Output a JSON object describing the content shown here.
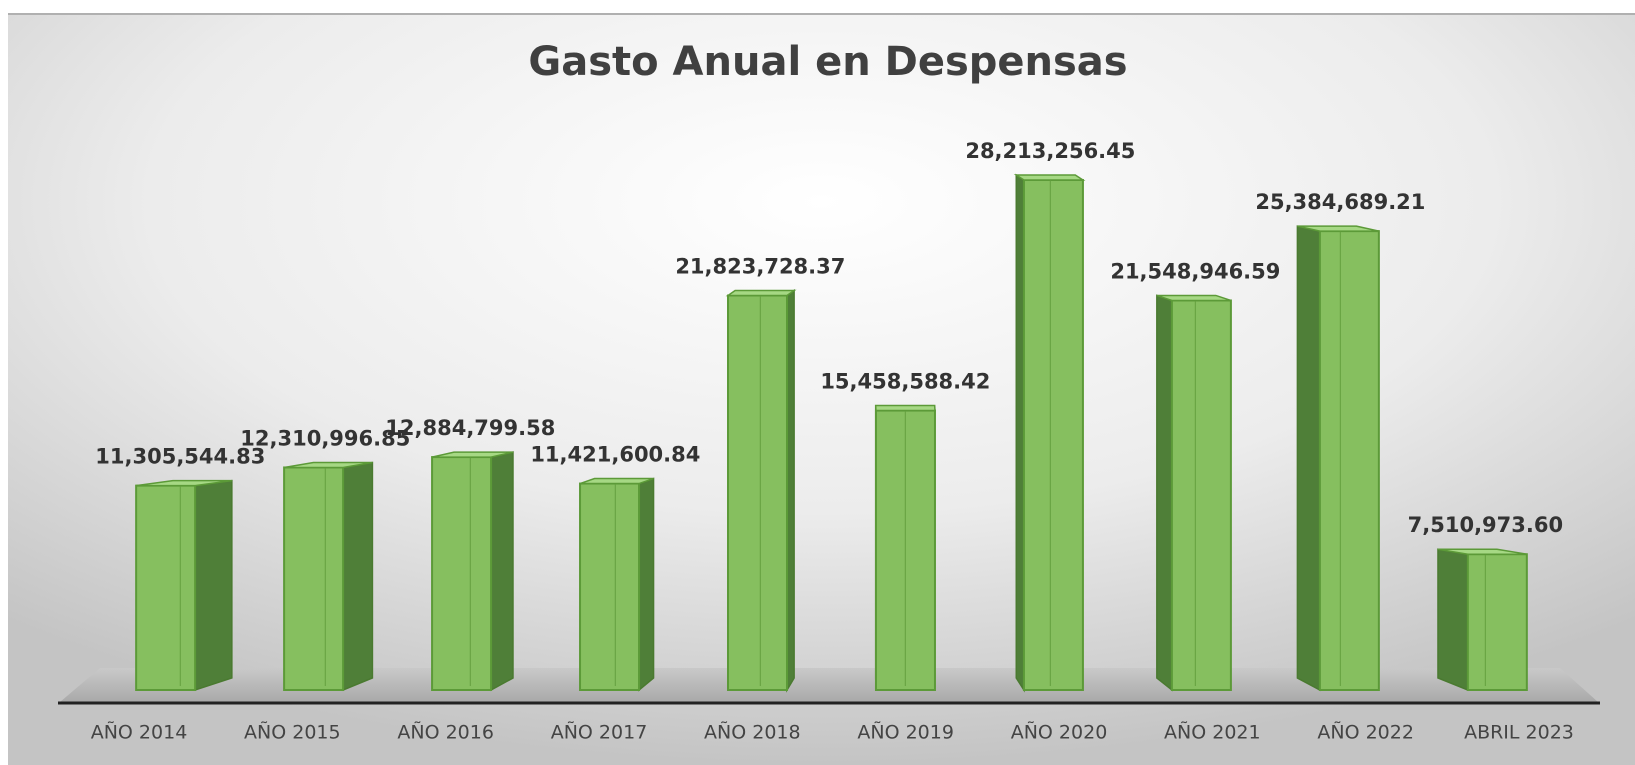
{
  "chart_data": {
    "type": "bar3d",
    "title": "Gasto Anual en Despensas",
    "categories": [
      "AÑO 2014",
      "AÑO 2015",
      "AÑO 2016",
      "AÑO 2017",
      "AÑO 2018",
      "AÑO 2019",
      "AÑO 2020",
      "AÑO 2021",
      "AÑO 2022",
      "ABRIL 2023"
    ],
    "values": [
      11305544.83,
      12310996.85,
      12884799.58,
      11421600.84,
      21823728.37,
      15458588.42,
      28213256.45,
      21548946.59,
      25384689.21,
      7510973.6
    ],
    "value_labels": [
      "11,305,544.83",
      "12,310,996.85",
      "12,884,799.58",
      "11,421,600.84",
      "21,823,728.37",
      "15,458,588.42",
      "28,213,256.45",
      "21,548,946.59",
      "25,384,689.21",
      "7,510,973.60"
    ],
    "color": "#86bf5f"
  }
}
